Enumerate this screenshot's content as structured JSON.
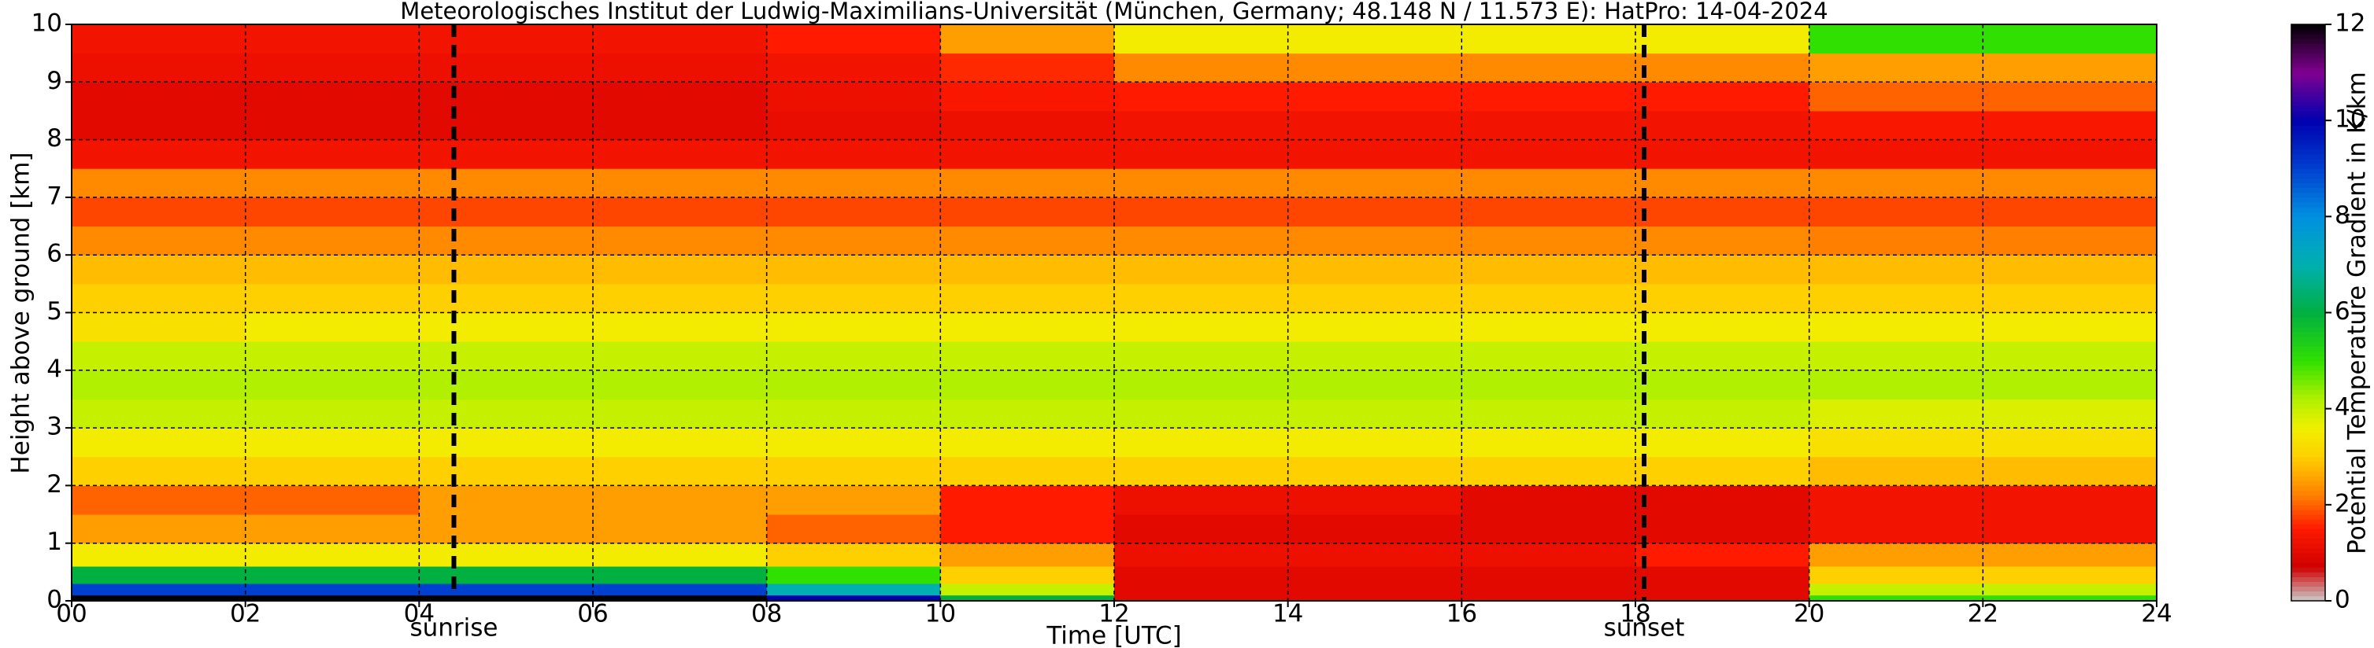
{
  "chart_data": {
    "type": "heatmap",
    "title": "Meteorologisches Institut der Ludwig-Maximilians-Universität (München, Germany; 48.148 N / 11.573 E):    HatPro: 14-04-2024",
    "x_label": "Time [UTC]",
    "y_label": "Height above ground [km]",
    "colorbar_label": "Potential Temperature Gradient in K/km",
    "xlim": [
      0,
      24
    ],
    "ylim": [
      0,
      10
    ],
    "xticks": [
      {
        "value": 0,
        "label": "00"
      },
      {
        "value": 2,
        "label": "02"
      },
      {
        "value": 4,
        "label": "04"
      },
      {
        "value": 6,
        "label": "06"
      },
      {
        "value": 8,
        "label": "08"
      },
      10,
      12,
      14,
      16,
      18,
      20,
      22,
      24
    ],
    "yticks": [
      0,
      1,
      2,
      3,
      4,
      5,
      6,
      7,
      8,
      9,
      10
    ],
    "grid": true,
    "x_edges": [
      0,
      2,
      4,
      6,
      8,
      10,
      12,
      14,
      16,
      18,
      20,
      22,
      24
    ],
    "y_edges": [
      0,
      0.1,
      0.3,
      0.6,
      1,
      1.5,
      2,
      2.5,
      3,
      3.5,
      4,
      4.5,
      5,
      5.5,
      6,
      6.5,
      7,
      7.5,
      8,
      8.5,
      9,
      9.5,
      10
    ],
    "values": [
      [
        12,
        12,
        12,
        12,
        10,
        6,
        1,
        1,
        1,
        1,
        5,
        5
      ],
      [
        9,
        9,
        9,
        9,
        7,
        4,
        1,
        1,
        1,
        1,
        4,
        4
      ],
      [
        6,
        6,
        6,
        6,
        5,
        3,
        1,
        1,
        1,
        1,
        3,
        3
      ],
      [
        3.5,
        3.5,
        3.5,
        3.5,
        3,
        2.5,
        1.2,
        1.2,
        1.2,
        1.5,
        2.5,
        2.5
      ],
      [
        2.5,
        2.5,
        2.5,
        2.5,
        2,
        1.5,
        1,
        1,
        1,
        1,
        1.3,
        1.3
      ],
      [
        2,
        2,
        2.5,
        2.5,
        2.5,
        1.5,
        1.2,
        1.2,
        1,
        1,
        1.3,
        1.3
      ],
      [
        3,
        3,
        3,
        3,
        3,
        3,
        3,
        3,
        3,
        3,
        2.8,
        2.8
      ],
      [
        3.5,
        3.5,
        3.5,
        3.5,
        3.5,
        3.5,
        3.5,
        3.5,
        3.5,
        3.5,
        3.3,
        3.3
      ],
      [
        4,
        4,
        4,
        4,
        4,
        4,
        4,
        4,
        4,
        4,
        3.8,
        3.8
      ],
      [
        4.2,
        4.2,
        4.2,
        4.2,
        4.2,
        4.2,
        4.2,
        4.2,
        4.2,
        4.2,
        4.2,
        4.2
      ],
      [
        4,
        4,
        4,
        4,
        4,
        4,
        4,
        4,
        4,
        4,
        4,
        4
      ],
      [
        3.3,
        3.5,
        3.5,
        3.5,
        3.5,
        3.5,
        3.5,
        3.5,
        3.5,
        3.5,
        3.5,
        3.5
      ],
      [
        3,
        3,
        3,
        3,
        3,
        3,
        3,
        3,
        3,
        3,
        3,
        3
      ],
      [
        2.8,
        2.8,
        2.8,
        2.8,
        2.8,
        2.8,
        2.8,
        2.8,
        2.8,
        2.8,
        2.8,
        2.8
      ],
      [
        2.3,
        2.3,
        2.3,
        2.3,
        2.3,
        2.3,
        2.3,
        2.3,
        2.3,
        2.3,
        2.2,
        2.2
      ],
      [
        1.8,
        1.8,
        1.8,
        1.8,
        1.8,
        1.8,
        1.8,
        1.8,
        1.8,
        1.8,
        1.8,
        1.8
      ],
      [
        2.3,
        2.3,
        2.3,
        2.3,
        2.3,
        2.3,
        2.3,
        2.3,
        2.3,
        2.3,
        2.3,
        2.3
      ],
      [
        1.3,
        1.3,
        1.3,
        1.3,
        1.3,
        1.3,
        1.3,
        1.3,
        1.3,
        1.3,
        1.3,
        1.3
      ],
      [
        1,
        1,
        1,
        1,
        1.1,
        1.2,
        1.3,
        1.3,
        1.3,
        1.3,
        1.4,
        1.4
      ],
      [
        1,
        1,
        1,
        1,
        1.2,
        1.4,
        1.5,
        1.5,
        1.5,
        1.5,
        2,
        2
      ],
      [
        1.2,
        1.2,
        1.2,
        1.2,
        1.3,
        1.6,
        2.3,
        2.3,
        2.3,
        2.3,
        2.5,
        2.5
      ],
      [
        1.3,
        1.3,
        1.3,
        1.3,
        1.5,
        2.5,
        3.5,
        3.5,
        3.5,
        3.5,
        5,
        5
      ]
    ],
    "colorbar_ticks": [
      0,
      2,
      4,
      6,
      8,
      10,
      12
    ],
    "colorscale": [
      [
        0,
        "#cccccc"
      ],
      [
        0.7,
        "#d00000"
      ],
      [
        1.5,
        "#ff1a00"
      ],
      [
        2.2,
        "#ff8000"
      ],
      [
        3,
        "#ffd000"
      ],
      [
        3.6,
        "#f0f000"
      ],
      [
        4.2,
        "#b0f000"
      ],
      [
        5,
        "#30e000"
      ],
      [
        6,
        "#00b040"
      ],
      [
        7,
        "#00b0b0"
      ],
      [
        8,
        "#0090e0"
      ],
      [
        9,
        "#0040d0"
      ],
      [
        10,
        "#0000b0"
      ],
      [
        11,
        "#800090"
      ],
      [
        12,
        "#000000"
      ]
    ],
    "annotations": [
      {
        "x": 4.4,
        "label": "sunrise"
      },
      {
        "x": 18.1,
        "label": "sunset"
      }
    ]
  }
}
